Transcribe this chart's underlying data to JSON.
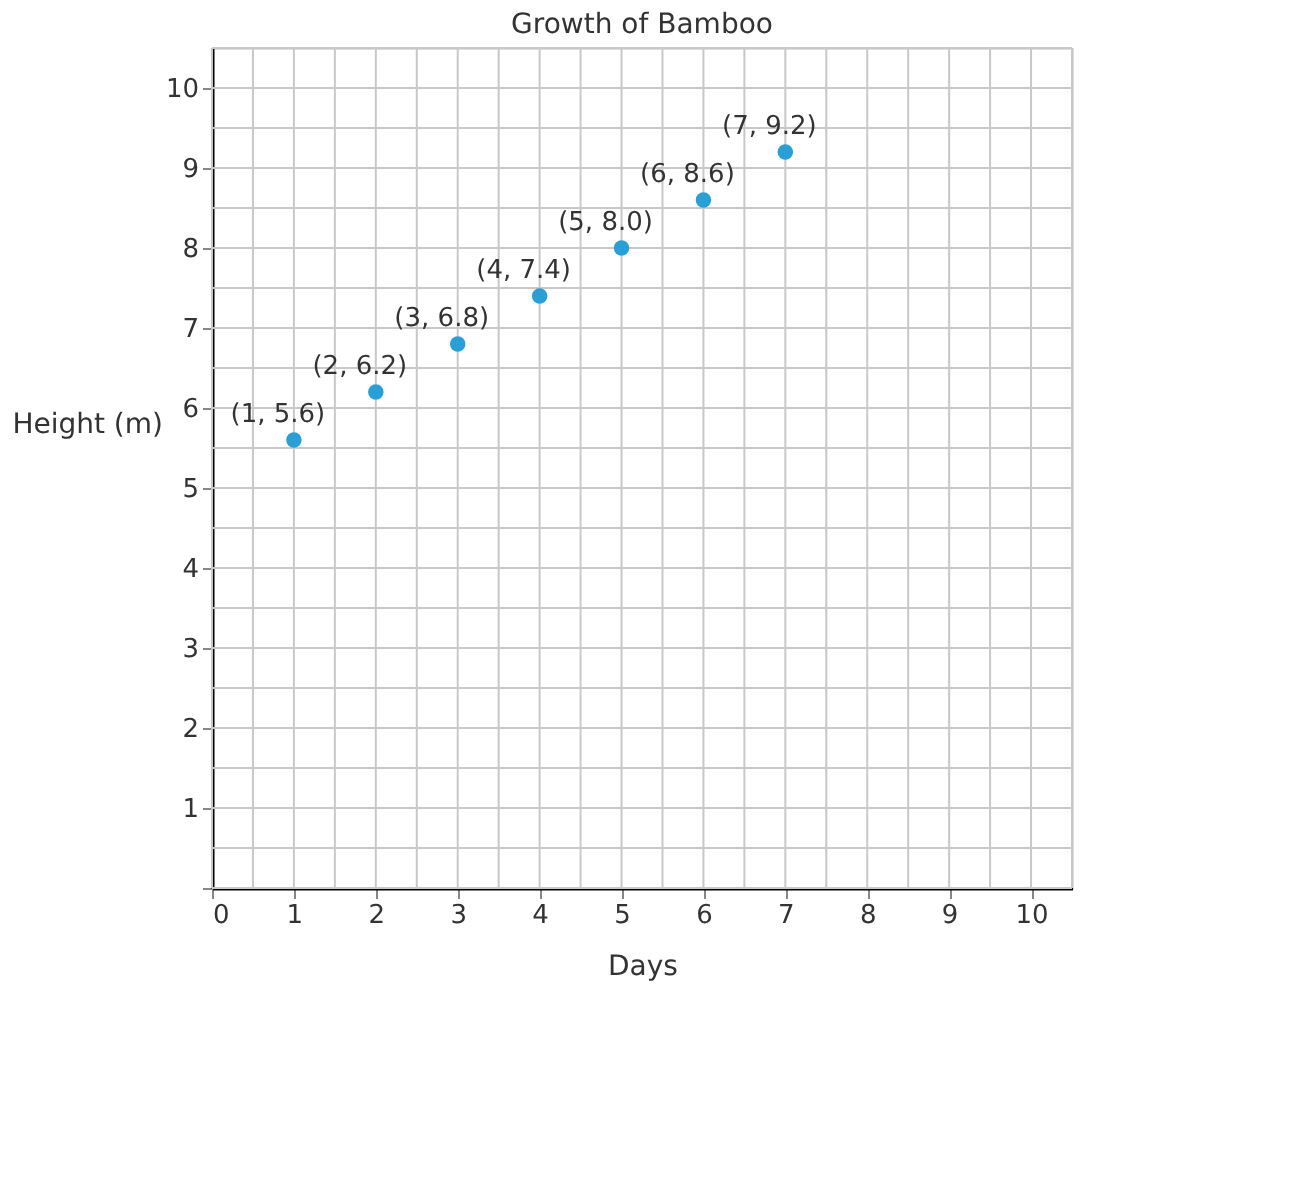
{
  "chart_data": {
    "type": "scatter",
    "title": "Growth of Bamboo",
    "xlabel": "Days",
    "ylabel": "Height (m)",
    "x": [
      1,
      2,
      3,
      4,
      5,
      6,
      7
    ],
    "series": [
      {
        "color": "#2a9fd6",
        "values": [
          5.6,
          6.2,
          6.8,
          7.4,
          8.0,
          8.6,
          9.2
        ],
        "value_labels": [
          "(1, 5.6)",
          "(2, 6.2)",
          "(3, 6.8)",
          "(4, 7.4)",
          "(5, 8.0)",
          "(6, 8.6)",
          "(7, 9.2)"
        ]
      }
    ],
    "xlim": [
      0,
      10.5
    ],
    "ylim": [
      0,
      10.5
    ],
    "xticks": [
      0,
      {
        "value": 0.5,
        "label": null
      },
      1,
      {
        "value": 1.5,
        "label": null
      },
      2,
      {
        "value": 2.5,
        "label": null
      },
      3,
      {
        "value": 3.5,
        "label": null
      },
      4,
      {
        "value": 4.5,
        "label": null
      },
      5,
      {
        "value": 5.5,
        "label": null
      },
      6,
      {
        "value": 6.5,
        "label": null
      },
      7,
      {
        "value": 7.5,
        "label": null
      },
      8,
      {
        "value": 8.5,
        "label": null
      },
      9,
      {
        "value": 9.5,
        "label": null
      },
      10,
      {
        "value": 10.5,
        "label": null
      }
    ],
    "yticks": [
      {
        "value": 0,
        "label": null
      },
      {
        "value": 0.5,
        "label": null
      },
      1,
      {
        "value": 1.5,
        "label": null
      },
      2,
      {
        "value": 2.5,
        "label": null
      },
      3,
      {
        "value": 3.5,
        "label": null
      },
      4,
      {
        "value": 4.5,
        "label": null
      },
      5,
      {
        "value": 5.5,
        "label": null
      },
      6,
      {
        "value": 6.5,
        "label": null
      },
      7,
      {
        "value": 7.5,
        "label": null
      },
      8,
      {
        "value": 8.5,
        "label": null
      },
      9,
      {
        "value": 9.5,
        "label": null
      },
      10,
      {
        "value": 10.5,
        "label": null
      }
    ],
    "grid": true,
    "marker": "circle",
    "legend": false
  }
}
